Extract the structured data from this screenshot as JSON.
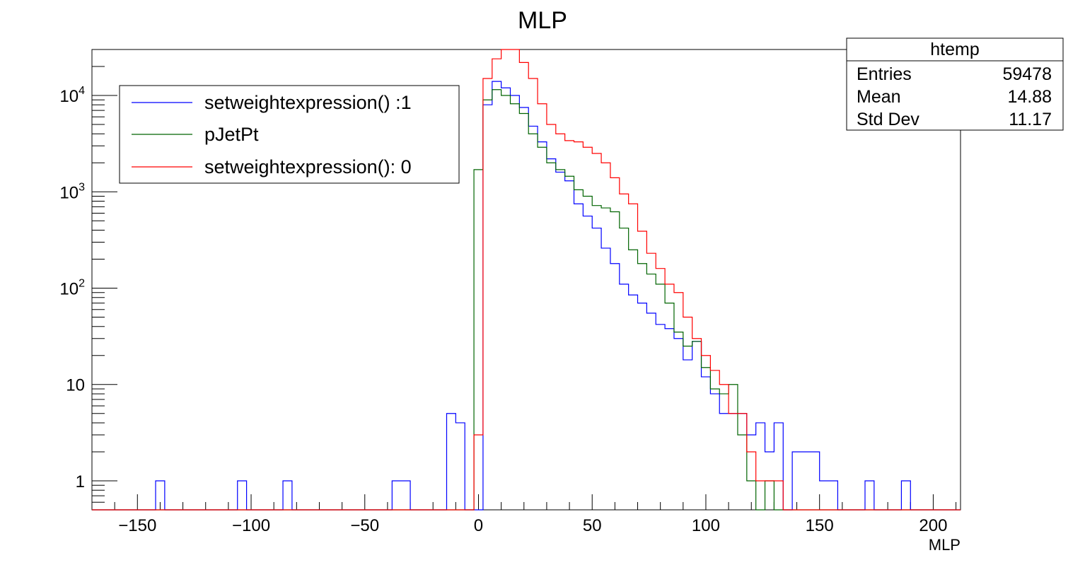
{
  "chart_data": {
    "type": "histogram",
    "title": "MLP",
    "xlabel": "MLP",
    "ylabel": "",
    "xlim": [
      -170,
      212
    ],
    "ylim": [
      0.5,
      30000
    ],
    "yscale": "log",
    "bin_width": 4,
    "x_ticks": [
      -150,
      -100,
      -50,
      0,
      50,
      100,
      150,
      200
    ],
    "x_tick_labels": [
      "−150",
      "−100",
      "−50",
      "0",
      "50",
      "100",
      "150",
      "200"
    ],
    "y_ticks": [
      {
        "value": 1,
        "base": "1",
        "exp": ""
      },
      {
        "value": 10,
        "base": "10",
        "exp": ""
      },
      {
        "value": 100,
        "base": "10",
        "exp": "2"
      },
      {
        "value": 1000,
        "base": "10",
        "exp": "3"
      },
      {
        "value": 10000,
        "base": "10",
        "exp": "4"
      }
    ],
    "legend_position": "top-left",
    "series": [
      {
        "name": "setweightexpression() :1",
        "color": "#0000ff",
        "bins": [
          [
            -142,
            1
          ],
          [
            -106,
            1
          ],
          [
            -86,
            1
          ],
          [
            -38,
            1
          ],
          [
            -34,
            1
          ],
          [
            -14,
            5
          ],
          [
            -10,
            4
          ],
          [
            2,
            8000
          ],
          [
            6,
            14000
          ],
          [
            10,
            12000
          ],
          [
            14,
            10000
          ],
          [
            18,
            7500
          ],
          [
            22,
            4800
          ],
          [
            26,
            3300
          ],
          [
            30,
            2200
          ],
          [
            34,
            1600
          ],
          [
            38,
            1300
          ],
          [
            42,
            750
          ],
          [
            46,
            560
          ],
          [
            50,
            420
          ],
          [
            54,
            260
          ],
          [
            58,
            180
          ],
          [
            62,
            110
          ],
          [
            66,
            85
          ],
          [
            70,
            70
          ],
          [
            74,
            55
          ],
          [
            78,
            42
          ],
          [
            82,
            38
          ],
          [
            86,
            30
          ],
          [
            90,
            18
          ],
          [
            94,
            28
          ],
          [
            98,
            12
          ],
          [
            102,
            8
          ],
          [
            106,
            5
          ],
          [
            110,
            5
          ],
          [
            114,
            5
          ],
          [
            118,
            3
          ],
          [
            122,
            4
          ],
          [
            126,
            2
          ],
          [
            130,
            4
          ],
          [
            138,
            2
          ],
          [
            142,
            2
          ],
          [
            146,
            2
          ],
          [
            150,
            1
          ],
          [
            154,
            1
          ],
          [
            170,
            1
          ],
          [
            186,
            1
          ]
        ]
      },
      {
        "name": "pJetPt",
        "color": "#006400",
        "bins": [
          [
            -2,
            1700
          ],
          [
            2,
            9000
          ],
          [
            6,
            11500
          ],
          [
            10,
            10000
          ],
          [
            14,
            8200
          ],
          [
            18,
            6500
          ],
          [
            22,
            4000
          ],
          [
            26,
            2900
          ],
          [
            30,
            2000
          ],
          [
            34,
            1700
          ],
          [
            38,
            1450
          ],
          [
            42,
            1050
          ],
          [
            46,
            900
          ],
          [
            50,
            720
          ],
          [
            54,
            680
          ],
          [
            58,
            620
          ],
          [
            62,
            420
          ],
          [
            66,
            250
          ],
          [
            70,
            180
          ],
          [
            74,
            140
          ],
          [
            78,
            110
          ],
          [
            82,
            70
          ],
          [
            86,
            35
          ],
          [
            90,
            25
          ],
          [
            94,
            28
          ],
          [
            98,
            15
          ],
          [
            102,
            9
          ],
          [
            106,
            8
          ],
          [
            110,
            10
          ],
          [
            114,
            3
          ],
          [
            118,
            1
          ],
          [
            126,
            1
          ]
        ]
      },
      {
        "name": "setweightexpression(): 0",
        "color": "#ff0000",
        "bins": [
          [
            -2,
            3
          ],
          [
            2,
            15000
          ],
          [
            6,
            24000
          ],
          [
            10,
            30000
          ],
          [
            14,
            30000
          ],
          [
            18,
            22000
          ],
          [
            22,
            15000
          ],
          [
            26,
            8200
          ],
          [
            30,
            5000
          ],
          [
            34,
            4000
          ],
          [
            38,
            3400
          ],
          [
            42,
            3300
          ],
          [
            46,
            2900
          ],
          [
            50,
            2500
          ],
          [
            54,
            2000
          ],
          [
            58,
            1400
          ],
          [
            62,
            950
          ],
          [
            66,
            750
          ],
          [
            70,
            390
          ],
          [
            74,
            230
          ],
          [
            78,
            160
          ],
          [
            82,
            110
          ],
          [
            86,
            90
          ],
          [
            90,
            50
          ],
          [
            94,
            30
          ],
          [
            98,
            20
          ],
          [
            102,
            14
          ],
          [
            106,
            10
          ],
          [
            110,
            5
          ],
          [
            114,
            5
          ],
          [
            118,
            2
          ],
          [
            122,
            1
          ],
          [
            126,
            1
          ],
          [
            130,
            1
          ]
        ]
      }
    ],
    "stats_box": {
      "title": "htemp",
      "rows": [
        {
          "label": "Entries",
          "value": "59478"
        },
        {
          "label": "Mean",
          "value": "14.88"
        },
        {
          "label": "Std Dev",
          "value": "11.17"
        }
      ]
    }
  }
}
